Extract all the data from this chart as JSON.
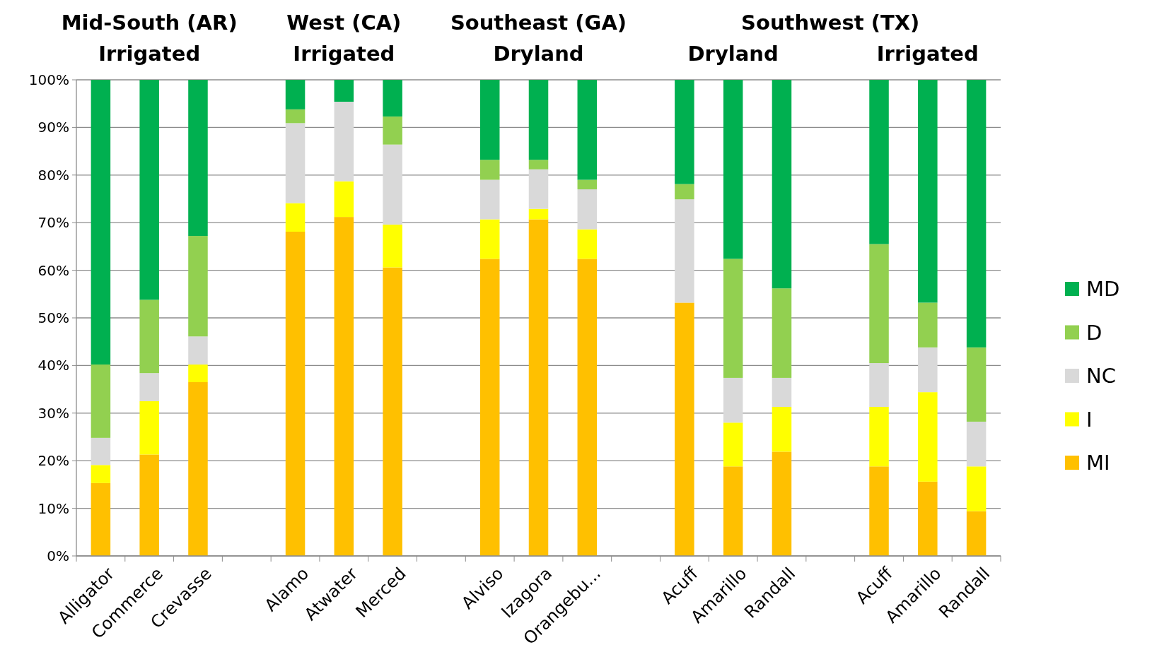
{
  "chart_data": {
    "type": "bar",
    "stacked": true,
    "categories": [
      "Alligator",
      "Commerce",
      "Crevasse",
      null,
      "Alamo",
      "Atwater",
      "Merced",
      null,
      "Alviso",
      "Izagora",
      "Orangebu...",
      null,
      "Acuff",
      "Amarillo",
      "Randall",
      null,
      "Acuff",
      "Amarillo",
      "Randall"
    ],
    "series": [
      {
        "name": "MI",
        "color": "#ffc000",
        "values": [
          15.3,
          21.3,
          36.5,
          null,
          68.1,
          71.2,
          60.6,
          null,
          62.4,
          70.7,
          62.4,
          null,
          53.2,
          18.8,
          21.9,
          null,
          18.8,
          15.6,
          9.4
        ]
      },
      {
        "name": "I",
        "color": "#ffff00",
        "values": [
          3.8,
          11.2,
          3.7,
          null,
          6.0,
          7.5,
          9.0,
          null,
          8.3,
          2.2,
          6.2,
          null,
          0,
          9.2,
          9.4,
          null,
          12.5,
          18.8,
          9.4
        ]
      },
      {
        "name": "NC",
        "color": "#d9d9d9",
        "values": [
          5.7,
          5.9,
          5.9,
          null,
          16.8,
          16.7,
          16.8,
          null,
          8.3,
          8.3,
          8.4,
          null,
          21.7,
          9.4,
          6.1,
          null,
          9.2,
          9.4,
          9.4
        ]
      },
      {
        "name": "D",
        "color": "#92d050",
        "values": [
          15.4,
          15.4,
          21.1,
          null,
          2.9,
          0,
          5.9,
          null,
          4.2,
          2.0,
          2.0,
          null,
          3.2,
          25.0,
          18.8,
          null,
          25.0,
          9.4,
          15.6
        ]
      },
      {
        "name": "MD",
        "color": "#00b050",
        "values": [
          59.8,
          46.2,
          32.8,
          null,
          6.2,
          4.6,
          7.7,
          null,
          16.8,
          16.8,
          21.0,
          null,
          21.9,
          37.6,
          43.8,
          null,
          34.5,
          46.8,
          56.2
        ]
      }
    ],
    "ylim": [
      0,
      100
    ],
    "yticks": [
      {
        "value": 0,
        "label": "0%"
      },
      {
        "value": 10,
        "label": "10%"
      },
      {
        "value": 20,
        "label": "20%"
      },
      {
        "value": 30,
        "label": "30%"
      },
      {
        "value": 40,
        "label": "40%"
      },
      {
        "value": 50,
        "label": "50%"
      },
      {
        "value": 60,
        "label": "60%"
      },
      {
        "value": 70,
        "label": "70%"
      },
      {
        "value": 80,
        "label": "80%"
      },
      {
        "value": 90,
        "label": "90%"
      },
      {
        "value": 100,
        "label": "100%"
      }
    ],
    "grid": "y",
    "legend": "right",
    "annotations": [
      "Mid-South (AR)",
      "Irrigated",
      "West (CA)",
      "Irrigated",
      "Southeast (GA)",
      "Dryland",
      "Southwest (TX)",
      "Dryland",
      "Irrigated"
    ]
  }
}
